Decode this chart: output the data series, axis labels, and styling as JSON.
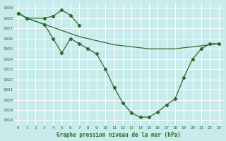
{
  "title": "Graphe pression niveau de la mer (hPa)",
  "bg_color": "#c8ecec",
  "grid_color": "#ffffff",
  "line_color": "#2d6a2d",
  "tick_label_color": "#2d6a2d",
  "ylim": [
    1017.5,
    1029.5
  ],
  "xlim": [
    -0.5,
    23.5
  ],
  "yticks": [
    1018,
    1019,
    1020,
    1021,
    1022,
    1023,
    1024,
    1025,
    1026,
    1027,
    1028,
    1029
  ],
  "xticks": [
    0,
    1,
    2,
    3,
    4,
    5,
    6,
    7,
    8,
    9,
    10,
    11,
    12,
    13,
    14,
    15,
    16,
    17,
    18,
    19,
    20,
    21,
    22,
    23
  ],
  "line1_x": [
    0,
    1,
    3,
    4,
    5,
    6,
    7
  ],
  "line1_y": [
    1028.5,
    1028.0,
    1028.0,
    1028.2,
    1028.8,
    1028.3,
    1027.3
  ],
  "line2_x": [
    0,
    1,
    2,
    3,
    4,
    5,
    6,
    7,
    8,
    9,
    10,
    11,
    12,
    13,
    14,
    15,
    16,
    17,
    18,
    19,
    20,
    21,
    22,
    23
  ],
  "line2_y": [
    1028.5,
    1028.0,
    1027.7,
    1027.4,
    1027.1,
    1026.8,
    1026.5,
    1026.2,
    1026.0,
    1025.8,
    1025.6,
    1025.4,
    1025.3,
    1025.2,
    1025.1,
    1025.0,
    1025.0,
    1025.0,
    1025.0,
    1025.1,
    1025.2,
    1025.3,
    1025.4,
    1025.5
  ],
  "line3_x": [
    0,
    1,
    3,
    4,
    5,
    6,
    7,
    8,
    9,
    10,
    11,
    12,
    13,
    14,
    15,
    16,
    17,
    18,
    19,
    20,
    21,
    22,
    23
  ],
  "line3_y": [
    1028.5,
    1028.0,
    1027.4,
    1026.0,
    1024.6,
    1026.0,
    1025.5,
    1025.0,
    1024.5,
    1023.0,
    1021.2,
    1019.7,
    1018.7,
    1018.3,
    1018.3,
    1018.8,
    1019.5,
    1020.1,
    1022.2,
    1024.0,
    1025.0,
    1025.5,
    1025.5
  ]
}
